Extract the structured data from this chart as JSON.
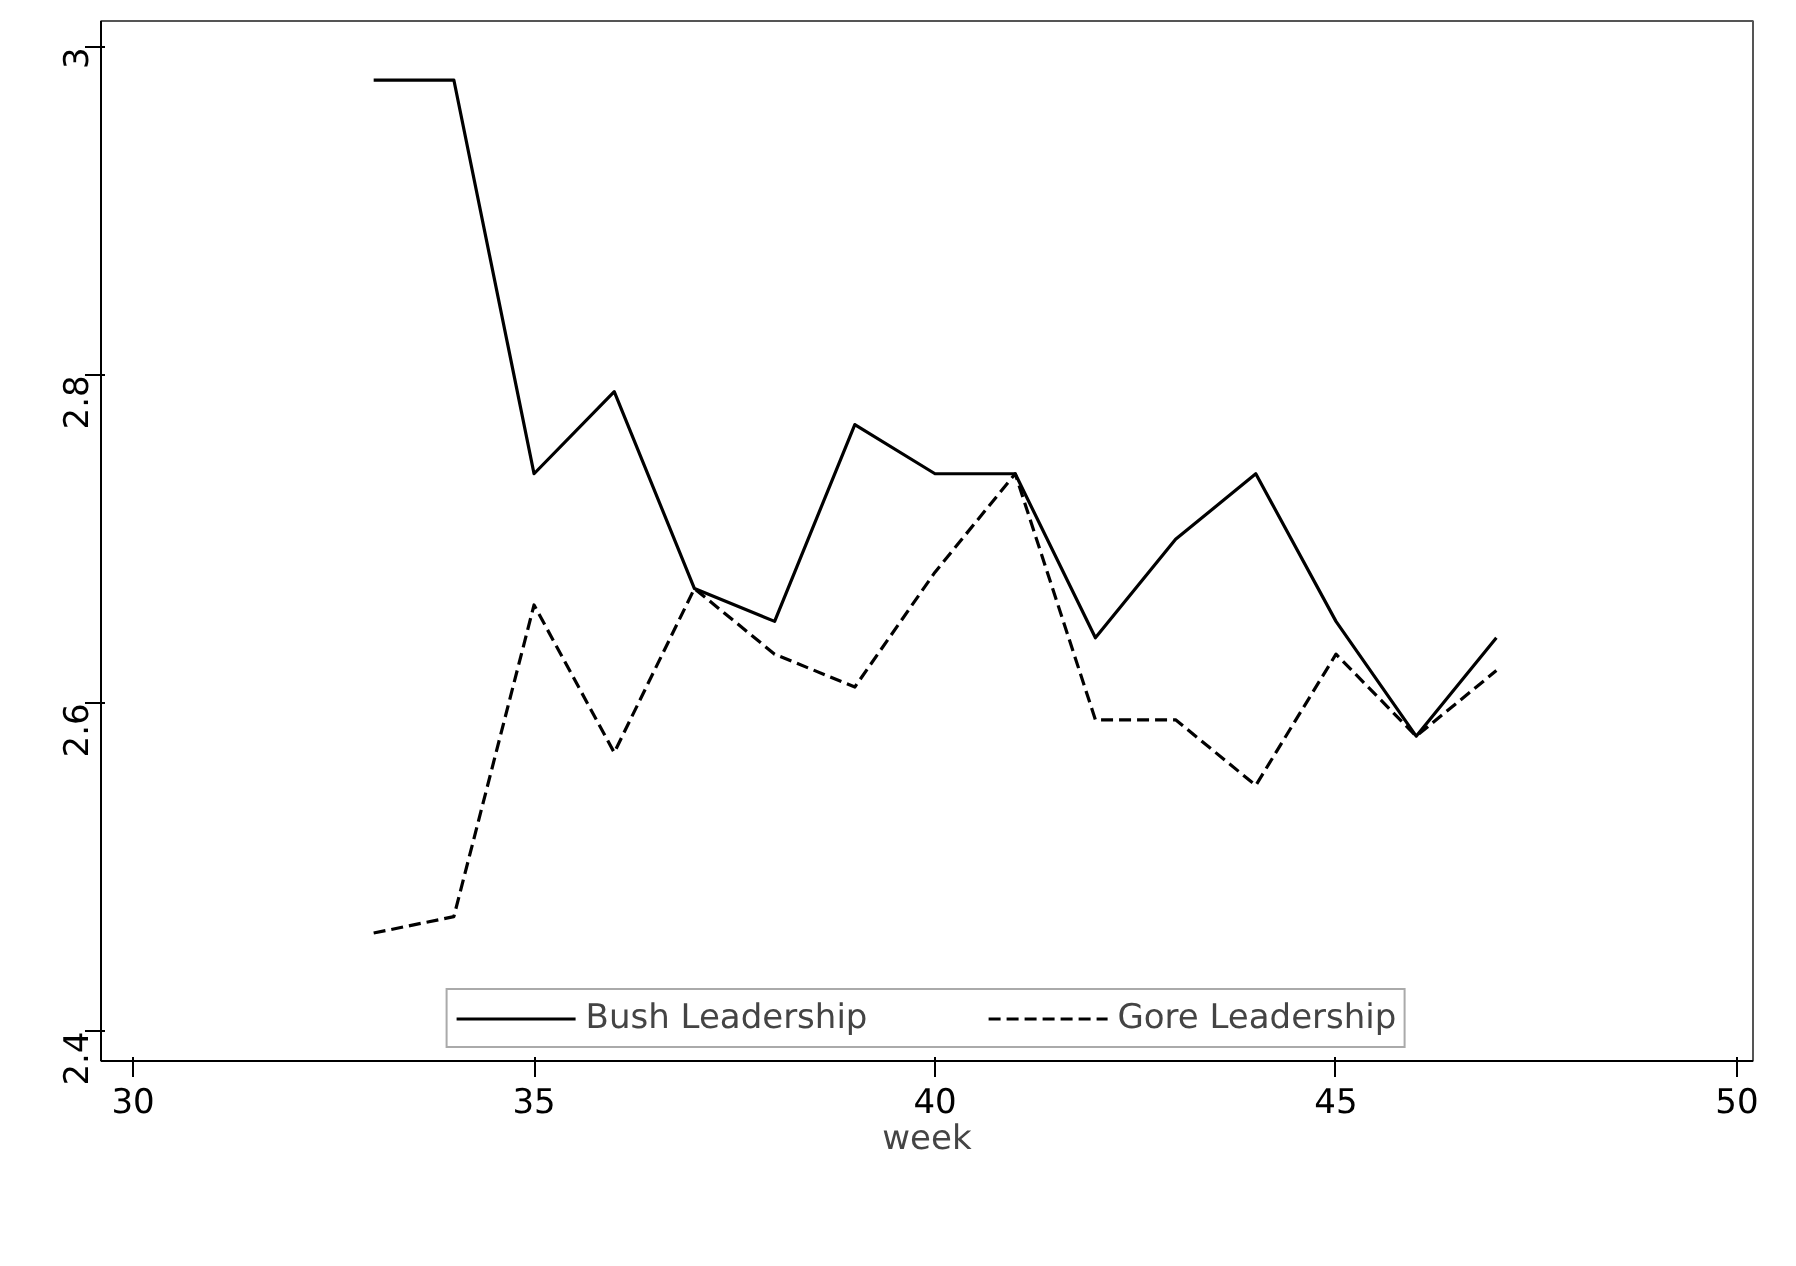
{
  "chart_data": {
    "type": "line",
    "xlabel": "week",
    "x": [
      33,
      34,
      35,
      36,
      37,
      38,
      39,
      40,
      41,
      42,
      43,
      44,
      45,
      46,
      47
    ],
    "series": [
      {
        "name": "Bush Leadership",
        "color": "#000000",
        "line_style": "solid",
        "values": [
          2.98,
          2.98,
          2.74,
          2.79,
          2.67,
          2.65,
          2.77,
          2.74,
          2.74,
          2.64,
          2.7,
          2.74,
          2.65,
          2.58,
          2.64
        ]
      },
      {
        "name": "Gore Leadership",
        "color": "#000000",
        "line_style": "dashed",
        "values": [
          2.46,
          2.47,
          2.66,
          2.57,
          2.67,
          2.63,
          2.61,
          2.68,
          2.74,
          2.59,
          2.59,
          2.55,
          2.63,
          2.58,
          2.62
        ]
      }
    ],
    "xlim": [
      29.6,
      50.2
    ],
    "ylim": [
      2.382,
      3.016
    ],
    "xticks": [
      30,
      35,
      40,
      45,
      50
    ],
    "yticks": [
      2.4,
      2.6,
      2.8,
      3
    ],
    "grid": false,
    "legend": "bottom",
    "marker": "none"
  }
}
